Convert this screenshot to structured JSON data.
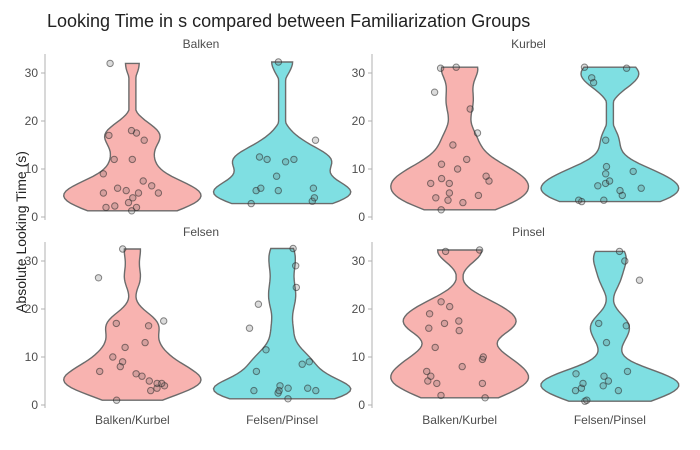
{
  "chart_data": {
    "type": "violin",
    "title": "Looking Time in s compared between Familiarization Groups",
    "ylabel": "Absolute Looking Time (s)",
    "xlabel": "",
    "ylim": [
      0,
      33
    ],
    "yticks": [
      0,
      10,
      20,
      30
    ],
    "categories": [
      "Balken/Kurbel",
      "Felsen/Pinsel"
    ],
    "colors": {
      "Balken/Kurbel": "#f8b3b0",
      "Felsen/Pinsel": "#7fdfe2"
    },
    "grid": false,
    "legend": "none",
    "panels": [
      {
        "label": "Balken",
        "groups": [
          {
            "category": "Balken/Kurbel",
            "min": 1.3,
            "max": 32,
            "points": [
              1.3,
              2,
              2,
              2.3,
              3,
              4,
              5,
              5,
              5,
              5.5,
              6,
              6.5,
              7.5,
              9,
              12,
              12,
              16,
              17,
              17.5,
              18,
              32
            ]
          },
          {
            "category": "Felsen/Pinsel",
            "min": 2.8,
            "max": 32.3,
            "points": [
              2.8,
              3.3,
              4,
              5.5,
              5.5,
              6,
              6,
              8.5,
              11.5,
              12,
              12,
              12.5,
              16,
              32.3
            ]
          }
        ]
      },
      {
        "label": "Kurbel",
        "groups": [
          {
            "category": "Balken/Kurbel",
            "min": 1.5,
            "max": 31.2,
            "points": [
              1.5,
              3,
              3.5,
              4,
              4.5,
              5,
              7,
              7,
              7.5,
              8,
              8.5,
              10,
              11,
              12,
              15,
              17.5,
              22.5,
              26,
              31,
              31.2
            ]
          },
          {
            "category": "Felsen/Pinsel",
            "min": 3.2,
            "max": 31.2,
            "points": [
              3.2,
              3.5,
              3.5,
              4.5,
              5.5,
              6,
              6.5,
              7,
              7.5,
              9,
              9.5,
              10.5,
              16,
              28,
              29,
              31,
              31.2
            ]
          }
        ]
      },
      {
        "label": "Felsen",
        "groups": [
          {
            "category": "Balken/Kurbel",
            "min": 1,
            "max": 32.5,
            "points": [
              1,
              3,
              3.5,
              4,
              4.5,
              4.5,
              5,
              6,
              6.5,
              7,
              8,
              9,
              10,
              12,
              13,
              16.5,
              17,
              17.5,
              26.5,
              32.5
            ]
          },
          {
            "category": "Felsen/Pinsel",
            "min": 1.3,
            "max": 32.6,
            "points": [
              1.3,
              2.5,
              3,
              3,
              3,
              3.5,
              3.5,
              4,
              7,
              8.5,
              9,
              11.5,
              16,
              21,
              24.5,
              29,
              32.6
            ]
          }
        ]
      },
      {
        "label": "Pinsel",
        "groups": [
          {
            "category": "Balken/Kurbel",
            "min": 1.5,
            "max": 32.3,
            "points": [
              1.5,
              2,
              4.5,
              4.5,
              5,
              6,
              7,
              8,
              9.5,
              10,
              12,
              15.5,
              16,
              17,
              17.5,
              19,
              20.5,
              21.5,
              32,
              32.3
            ]
          },
          {
            "category": "Felsen/Pinsel",
            "min": 0.8,
            "max": 32,
            "points": [
              0.8,
              1,
              3,
              3,
              3.5,
              4,
              4.5,
              5,
              6,
              6.5,
              7,
              13,
              16.5,
              17,
              26,
              30,
              32
            ]
          }
        ]
      }
    ]
  }
}
